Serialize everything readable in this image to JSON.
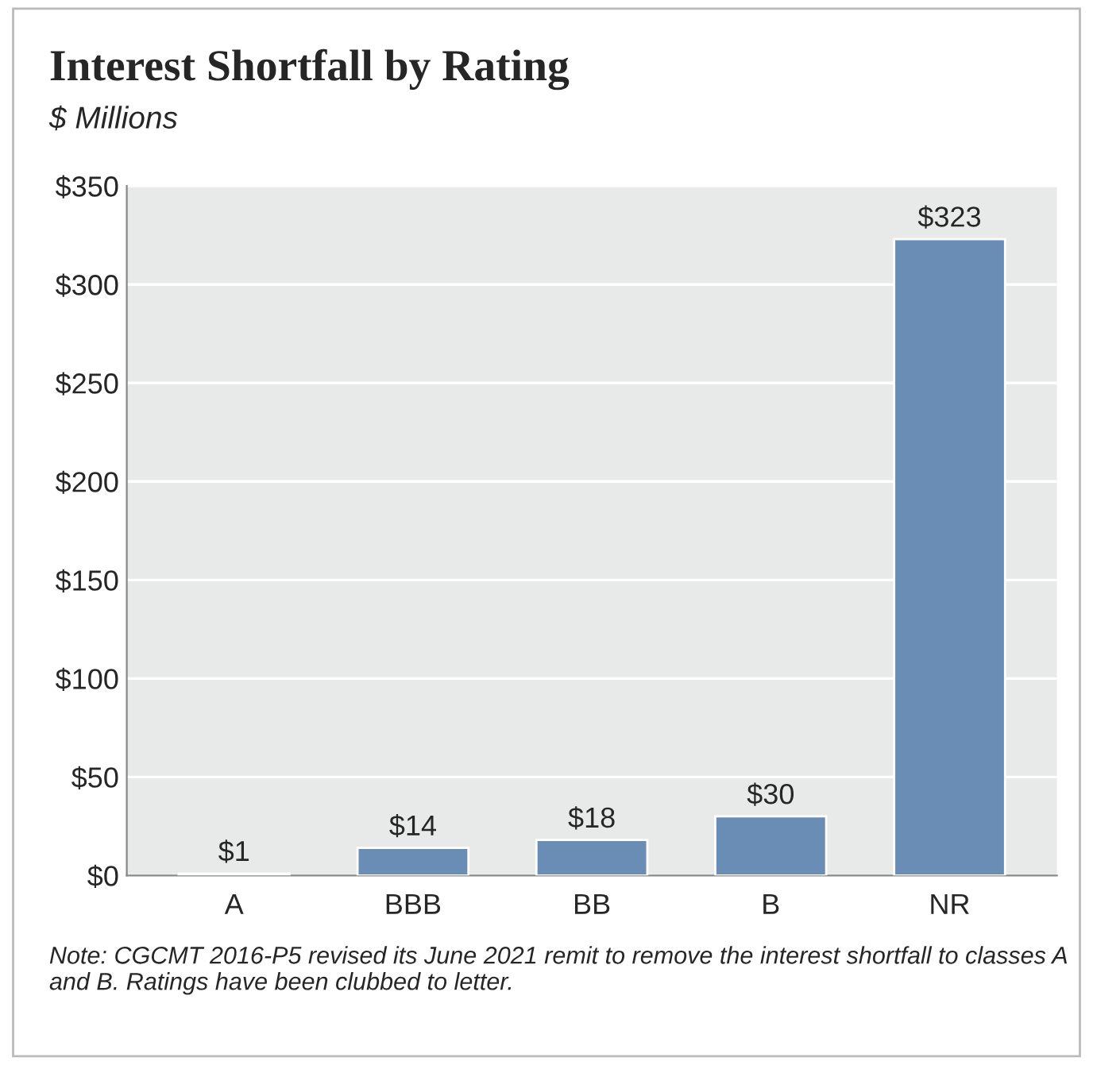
{
  "chart_data": {
    "type": "bar",
    "title": "Interest Shortfall by Rating",
    "subtitle": "$ Millions",
    "categories": [
      "A",
      "BBB",
      "BB",
      "B",
      "NR"
    ],
    "values": [
      1,
      14,
      18,
      30,
      323
    ],
    "value_labels": [
      "$1",
      "$14",
      "$18",
      "$30",
      "$323"
    ],
    "color": "#6a8db5",
    "ylim": [
      0,
      350
    ],
    "yticks": [
      {
        "value": 0,
        "label": "$0"
      },
      {
        "value": 50,
        "label": "$50"
      },
      {
        "value": 100,
        "label": "$100"
      },
      {
        "value": 150,
        "label": "$150"
      },
      {
        "value": 200,
        "label": "$200"
      },
      {
        "value": 250,
        "label": "$250"
      },
      {
        "value": 300,
        "label": "$300"
      },
      {
        "value": 350,
        "label": "$350"
      }
    ],
    "grid": "y",
    "annotations": [
      "Note: CGCMT 2016-P5 revised its June 2021 remit to remove the interest shortfall to classes A and B. Ratings have been clubbed to letter."
    ]
  }
}
